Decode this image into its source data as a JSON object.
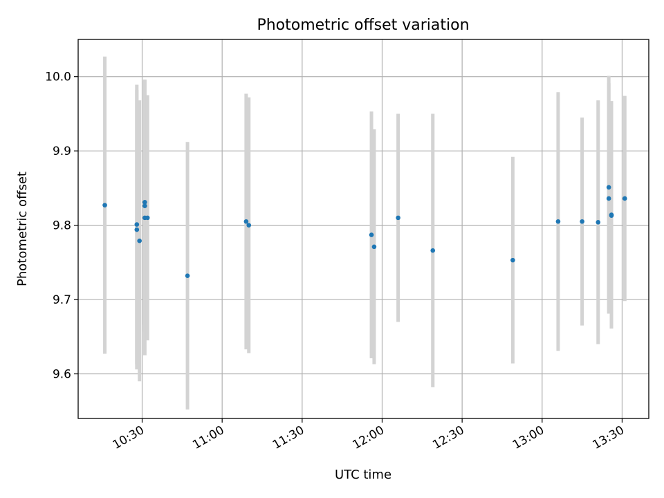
{
  "chart_data": {
    "type": "scatter",
    "title": "Photometric offset variation",
    "xlabel": "UTC time",
    "ylabel": "Photometric offset",
    "x_ticks": [
      "10:30",
      "11:00",
      "11:30",
      "12:00",
      "12:30",
      "13:00",
      "13:30"
    ],
    "y_ticks": [
      "9.6",
      "9.7",
      "9.8",
      "9.9",
      "10.0"
    ],
    "xlim": [
      "10:06",
      "13:40"
    ],
    "ylim": [
      9.54,
      10.05
    ],
    "grid": true,
    "colors": {
      "point": "#1f77b4",
      "errorbar": "#d3d3d3"
    },
    "points": [
      {
        "time": "10:16",
        "y": 9.827,
        "err": 0.2
      },
      {
        "time": "10:28",
        "y": 9.801,
        "err": 0.188
      },
      {
        "time": "10:28",
        "y": 9.794,
        "err": 0.188
      },
      {
        "time": "10:29",
        "y": 9.779,
        "err": 0.189
      },
      {
        "time": "10:31",
        "y": 9.831,
        "err": 0.165
      },
      {
        "time": "10:31",
        "y": 9.826,
        "err": 0.169
      },
      {
        "time": "10:31",
        "y": 9.81,
        "err": 0.185
      },
      {
        "time": "10:32",
        "y": 9.81,
        "err": 0.165
      },
      {
        "time": "10:47",
        "y": 9.732,
        "err": 0.18
      },
      {
        "time": "11:09",
        "y": 9.805,
        "err": 0.172
      },
      {
        "time": "11:10",
        "y": 9.8,
        "err": 0.172
      },
      {
        "time": "11:56",
        "y": 9.787,
        "err": 0.166
      },
      {
        "time": "11:57",
        "y": 9.771,
        "err": 0.158
      },
      {
        "time": "12:06",
        "y": 9.81,
        "err": 0.14
      },
      {
        "time": "12:19",
        "y": 9.766,
        "err": 0.184
      },
      {
        "time": "12:49",
        "y": 9.753,
        "err": 0.139
      },
      {
        "time": "13:06",
        "y": 9.805,
        "err": 0.174
      },
      {
        "time": "13:15",
        "y": 9.805,
        "err": 0.14
      },
      {
        "time": "13:21",
        "y": 9.804,
        "err": 0.164
      },
      {
        "time": "13:25",
        "y": 9.851,
        "err": 0.15
      },
      {
        "time": "13:25",
        "y": 9.836,
        "err": 0.155
      },
      {
        "time": "13:26",
        "y": 9.814,
        "err": 0.153
      },
      {
        "time": "13:26",
        "y": 9.813,
        "err": 0.152
      },
      {
        "time": "13:31",
        "y": 9.836,
        "err": 0.138
      }
    ]
  }
}
